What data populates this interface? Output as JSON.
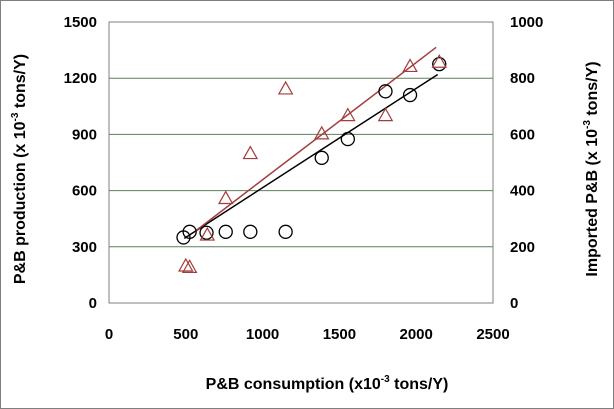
{
  "chart_data": {
    "type": "scatter",
    "xlabel": "P&B consumption (x10",
    "xlabel_sup": "-3",
    "xlabel_suffix": " tons/Y)",
    "ylabel": "P&B production (x 10",
    "ylabel_sup": "-3",
    "ylabel_suffix": " tons/Y)",
    "y2label": "Imported P&B (x 10",
    "y2label_sup": "-3",
    "y2label_suffix": " tons/Y)",
    "xlim": [
      0,
      2500
    ],
    "ylim": [
      0,
      1500
    ],
    "y2lim": [
      0,
      1000
    ],
    "x_ticks": [
      "0",
      "500",
      "1000",
      "1500",
      "2000",
      "2500"
    ],
    "y_ticks": [
      "0",
      "300",
      "600",
      "900",
      "1200",
      "1500"
    ],
    "y2_ticks": [
      "0",
      "200",
      "400",
      "600",
      "800",
      "1000"
    ],
    "grid": "horizontal",
    "series": [
      {
        "marker": "circle",
        "axis": "left",
        "color": "#000000",
        "points": [
          {
            "x": 485,
            "y": 350
          },
          {
            "x": 525,
            "y": 380
          },
          {
            "x": 635,
            "y": 375
          },
          {
            "x": 760,
            "y": 380
          },
          {
            "x": 920,
            "y": 380
          },
          {
            "x": 1150,
            "y": 380
          },
          {
            "x": 1385,
            "y": 775
          },
          {
            "x": 1555,
            "y": 875
          },
          {
            "x": 1800,
            "y": 1130
          },
          {
            "x": 1960,
            "y": 1110
          },
          {
            "x": 2150,
            "y": 1275
          }
        ],
        "trendline": [
          [
            490,
            345
          ],
          [
            2140,
            1220
          ]
        ]
      },
      {
        "marker": "triangle",
        "axis": "right",
        "color": "#a33c3c",
        "points": [
          {
            "x": 500,
            "y": 130
          },
          {
            "x": 525,
            "y": 125
          },
          {
            "x": 640,
            "y": 240
          },
          {
            "x": 760,
            "y": 370
          },
          {
            "x": 920,
            "y": 530
          },
          {
            "x": 1150,
            "y": 760
          },
          {
            "x": 1385,
            "y": 600
          },
          {
            "x": 1555,
            "y": 665
          },
          {
            "x": 1800,
            "y": 665
          },
          {
            "x": 1960,
            "y": 840
          },
          {
            "x": 2150,
            "y": 855
          }
        ],
        "trendline": [
          [
            560,
            255
          ],
          [
            2130,
            910
          ]
        ]
      }
    ]
  }
}
